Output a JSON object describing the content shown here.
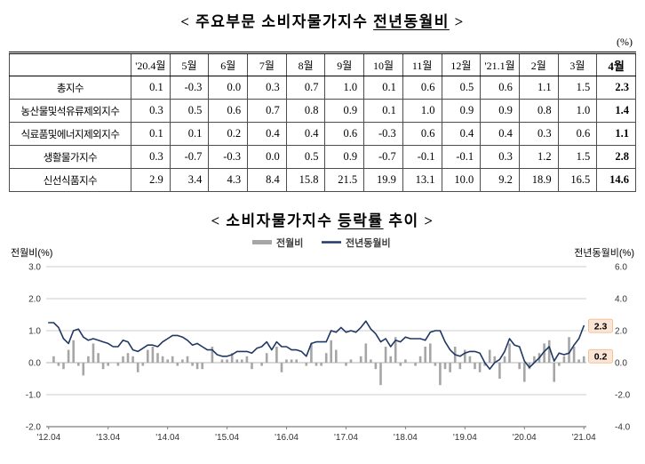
{
  "section1": {
    "title_prefix": "< 주요부문 소비자물가지수 ",
    "title_underlined": "전년동월비",
    "title_suffix": " >"
  },
  "table": {
    "unit": "(%)",
    "columns": [
      "",
      "'20.4월",
      "5월",
      "6월",
      "7월",
      "8월",
      "9월",
      "10월",
      "11월",
      "12월",
      "'21.1월",
      "2월",
      "3월",
      "4월"
    ],
    "rows": [
      {
        "label": "총지수",
        "values": [
          "0.1",
          "-0.3",
          "0.0",
          "0.3",
          "0.7",
          "1.0",
          "0.1",
          "0.6",
          "0.5",
          "0.6",
          "1.1",
          "1.5",
          "2.3"
        ]
      },
      {
        "label": "농산물및석유류제외지수",
        "values": [
          "0.3",
          "0.5",
          "0.6",
          "0.7",
          "0.8",
          "0.9",
          "0.1",
          "1.0",
          "0.9",
          "0.9",
          "0.8",
          "1.0",
          "1.4"
        ]
      },
      {
        "label": "식료품및에너지제외지수",
        "values": [
          "0.1",
          "0.1",
          "0.2",
          "0.4",
          "0.4",
          "0.6",
          "-0.3",
          "0.6",
          "0.4",
          "0.4",
          "0.3",
          "0.6",
          "1.1"
        ]
      },
      {
        "label": "생활물가지수",
        "values": [
          "0.3",
          "-0.7",
          "-0.3",
          "0.0",
          "0.5",
          "0.9",
          "-0.7",
          "-0.1",
          "-0.1",
          "0.3",
          "1.2",
          "1.5",
          "2.8"
        ]
      },
      {
        "label": "신선식품지수",
        "values": [
          "2.9",
          "3.4",
          "4.3",
          "8.4",
          "15.8",
          "21.5",
          "19.9",
          "13.1",
          "10.0",
          "9.2",
          "18.9",
          "16.5",
          "14.6"
        ]
      }
    ]
  },
  "section2": {
    "title_prefix": "< 소비자물가지수 ",
    "title_underlined": "등락률",
    "title_suffix": " 추이 >"
  },
  "chart_data": {
    "type": "bar+line",
    "title": "소비자물가지수 등락률 추이",
    "left_axis": {
      "label": "전월비(%)",
      "min": -2.0,
      "max": 3.0,
      "tick_values": [
        3,
        2,
        1,
        0,
        -1,
        -2
      ],
      "tick_labels": [
        "3.0",
        "2.0",
        "1.0",
        "0.0",
        "-1.0",
        "-2.0"
      ]
    },
    "right_axis": {
      "label": "전년동월비(%)",
      "min": -4.0,
      "max": 6.0,
      "tick_labels": [
        "6.0",
        "4.0",
        "2.0",
        "0.0",
        "-2.0",
        "-4.0"
      ]
    },
    "x_tick_labels": [
      "'12.04",
      "'13.04",
      "'14.04",
      "'15.04",
      "'16.04",
      "'17.04",
      "'18.04",
      "'19.04",
      "'20.04",
      "'21.04"
    ],
    "legend_position": "top-center",
    "grid": true,
    "series": [
      {
        "name": "전월비",
        "type": "bar",
        "axis": "left",
        "color": "#a6a6a6",
        "values": [
          0.0,
          0.2,
          -0.1,
          -0.2,
          0.4,
          0.7,
          -0.1,
          -0.4,
          0.2,
          0.6,
          0.3,
          -0.2,
          -0.1,
          0.0,
          -0.1,
          0.2,
          0.3,
          0.2,
          -0.3,
          -0.1,
          0.4,
          0.5,
          0.3,
          0.2,
          0.1,
          0.2,
          -0.1,
          0.1,
          0.2,
          -0.1,
          -0.2,
          -0.2,
          0.0,
          0.5,
          0.0,
          0.1,
          0.1,
          0.3,
          0.1,
          0.1,
          0.2,
          -0.2,
          0.0,
          -0.1,
          0.3,
          0.0,
          0.5,
          -0.3,
          0.1,
          0.1,
          0.1,
          0.0,
          -0.1,
          0.6,
          -0.1,
          -0.1,
          0.3,
          0.7,
          0.4,
          0.0,
          -0.1,
          0.1,
          0.0,
          0.2,
          0.6,
          0.1,
          -0.2,
          -0.7,
          0.5,
          0.2,
          0.8,
          -0.1,
          0.1,
          0.0,
          -0.1,
          0.2,
          0.5,
          0.6,
          -0.1,
          -0.7,
          -0.2,
          -0.3,
          0.5,
          -0.2,
          0.4,
          0.2,
          -0.2,
          -0.3,
          -0.1,
          0.4,
          0.2,
          -0.5,
          0.2,
          0.6,
          0.0,
          -0.2,
          -0.6,
          -0.2,
          0.2,
          0.3,
          0.6,
          0.7,
          -0.6,
          -0.1,
          0.2,
          0.8,
          0.5,
          0.1,
          0.2
        ]
      },
      {
        "name": "전년동월비",
        "type": "line",
        "axis": "right",
        "color": "#1f3864",
        "values": [
          2.5,
          2.5,
          2.2,
          1.5,
          1.2,
          2.0,
          2.1,
          1.6,
          1.4,
          1.5,
          1.4,
          1.3,
          1.2,
          1.0,
          1.0,
          1.4,
          1.3,
          0.8,
          0.7,
          0.9,
          1.1,
          1.1,
          1.0,
          1.3,
          1.5,
          1.7,
          1.7,
          1.6,
          1.4,
          1.1,
          1.2,
          1.0,
          0.8,
          0.8,
          0.5,
          0.4,
          0.4,
          0.5,
          0.7,
          0.7,
          0.7,
          0.6,
          0.9,
          1.0,
          1.3,
          0.8,
          1.3,
          1.0,
          1.0,
          0.8,
          0.8,
          0.7,
          0.4,
          1.2,
          1.3,
          1.3,
          1.3,
          2.0,
          1.9,
          2.2,
          1.9,
          2.0,
          1.9,
          2.2,
          2.6,
          2.1,
          1.8,
          1.3,
          1.5,
          1.0,
          1.4,
          1.3,
          1.6,
          1.5,
          1.5,
          1.5,
          1.4,
          1.9,
          2.0,
          2.0,
          1.3,
          0.8,
          0.5,
          0.4,
          0.6,
          0.7,
          0.7,
          0.6,
          0.0,
          -0.4,
          0.0,
          0.2,
          0.7,
          1.5,
          1.1,
          1.0,
          0.1,
          -0.3,
          0.0,
          0.3,
          0.7,
          1.0,
          0.1,
          0.6,
          0.5,
          0.6,
          1.1,
          1.5,
          2.3
        ]
      }
    ],
    "annotations": [
      {
        "text": "2.3",
        "series": "전년동월비",
        "axis": "right",
        "value": 2.3
      },
      {
        "text": "0.2",
        "series": "전월비",
        "axis": "left",
        "value": 0.2
      }
    ],
    "colors": {
      "bar": "#a6a6a6",
      "line": "#1f3864",
      "annotation_bg": "#fbe5d6",
      "annotation_border": "#f0b27c",
      "grid": "#cccccc",
      "zero_line": "#b3b3b3",
      "axis": "#7f7f7f"
    }
  }
}
